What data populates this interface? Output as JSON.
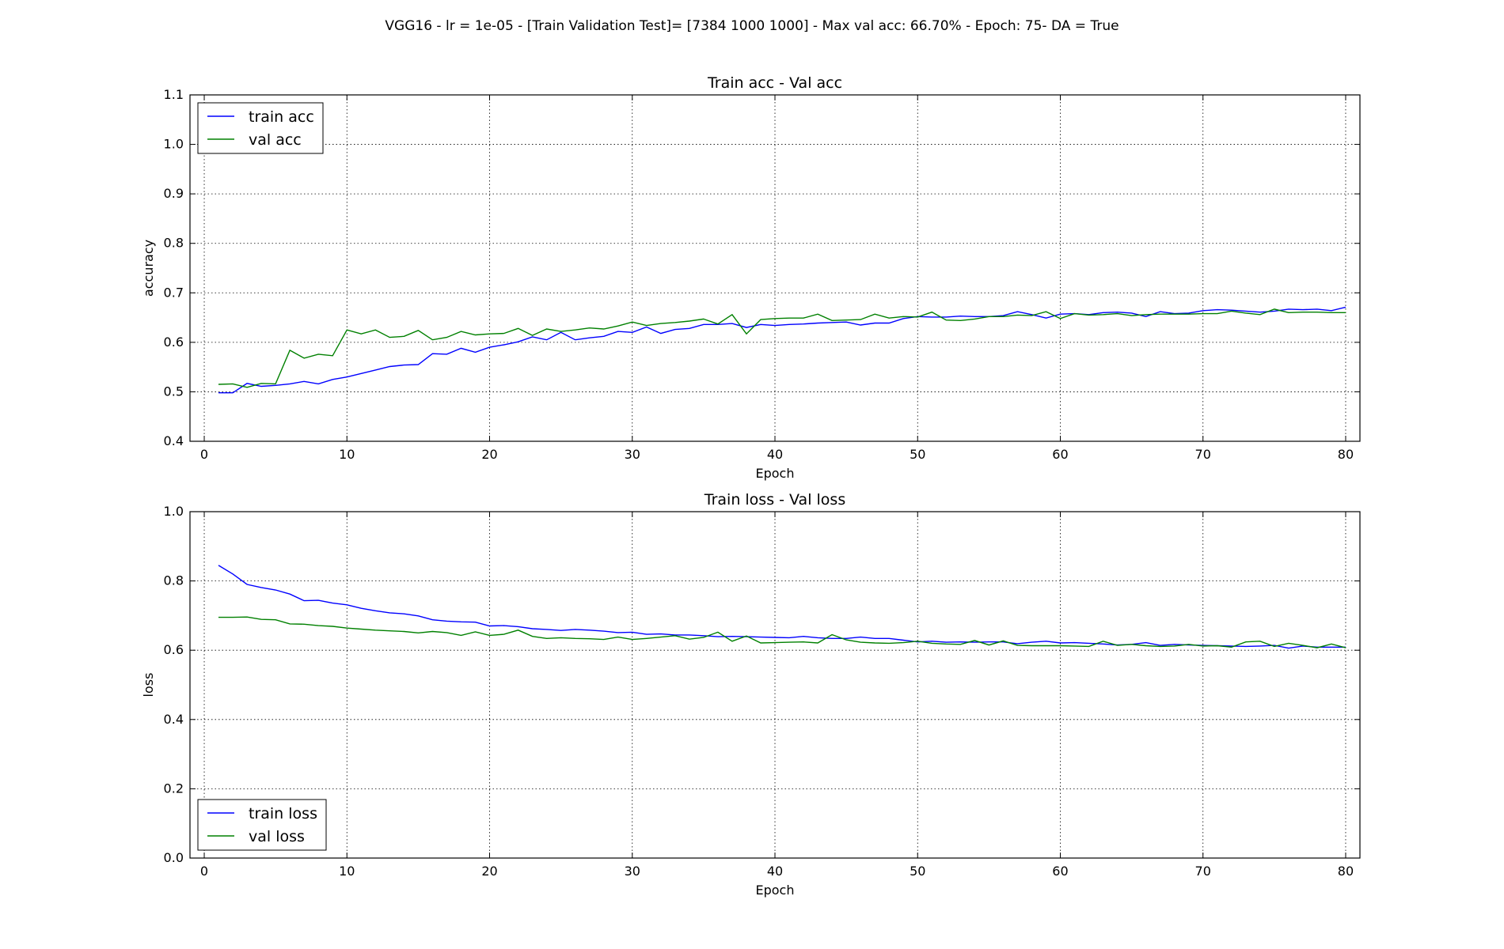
{
  "suptitle": "VGG16 - lr = 1e-05 - [Train Validation Test]= [7384 1000 1000] - Max val acc: 66.70% -  Epoch: 75- DA = True",
  "colors": {
    "train": "#0000ff",
    "val": "#008000"
  },
  "chart_data": [
    {
      "type": "line",
      "title": "Train acc - Val acc",
      "xlabel": "Epoch",
      "ylabel": "accuracy",
      "xlim": [
        -1,
        81
      ],
      "ylim": [
        0.4,
        1.1
      ],
      "xticks": [
        0,
        10,
        20,
        30,
        40,
        50,
        60,
        70,
        80
      ],
      "yticks": [
        0.4,
        0.5,
        0.6,
        0.7,
        0.8,
        0.9,
        1.0,
        1.1
      ],
      "tick_format": 1,
      "grid": true,
      "legend_position": "upper-left",
      "x": [
        1,
        2,
        3,
        4,
        5,
        6,
        7,
        8,
        9,
        10,
        11,
        12,
        13,
        14,
        15,
        16,
        17,
        18,
        19,
        20,
        21,
        22,
        23,
        24,
        25,
        26,
        27,
        28,
        29,
        30,
        31,
        32,
        33,
        34,
        35,
        36,
        37,
        38,
        39,
        40,
        41,
        42,
        43,
        44,
        45,
        46,
        47,
        48,
        49,
        50,
        51,
        52,
        53,
        54,
        55,
        56,
        57,
        58,
        59,
        60,
        61,
        62,
        63,
        64,
        65,
        66,
        67,
        68,
        69,
        70,
        71,
        72,
        73,
        74,
        75,
        76,
        77,
        78,
        79,
        80
      ],
      "series": [
        {
          "name": "train acc",
          "color_key": "train",
          "values": [
            0.498,
            0.498,
            0.517,
            0.511,
            0.513,
            0.516,
            0.521,
            0.516,
            0.525,
            0.53,
            0.537,
            0.544,
            0.551,
            0.554,
            0.555,
            0.577,
            0.576,
            0.588,
            0.58,
            0.59,
            0.595,
            0.601,
            0.611,
            0.605,
            0.62,
            0.605,
            0.609,
            0.612,
            0.622,
            0.62,
            0.631,
            0.618,
            0.626,
            0.628,
            0.636,
            0.636,
            0.638,
            0.63,
            0.636,
            0.634,
            0.636,
            0.637,
            0.639,
            0.64,
            0.641,
            0.635,
            0.639,
            0.639,
            0.648,
            0.652,
            0.651,
            0.651,
            0.653,
            0.652,
            0.652,
            0.654,
            0.662,
            0.656,
            0.649,
            0.657,
            0.658,
            0.656,
            0.66,
            0.661,
            0.659,
            0.652,
            0.662,
            0.658,
            0.659,
            0.664,
            0.666,
            0.665,
            0.663,
            0.661,
            0.663,
            0.667,
            0.666,
            0.667,
            0.664,
            0.671
          ]
        },
        {
          "name": "val acc",
          "color_key": "val",
          "values": [
            0.515,
            0.516,
            0.509,
            0.517,
            0.516,
            0.584,
            0.568,
            0.576,
            0.573,
            0.625,
            0.617,
            0.625,
            0.61,
            0.612,
            0.624,
            0.605,
            0.61,
            0.622,
            0.615,
            0.617,
            0.618,
            0.628,
            0.614,
            0.627,
            0.622,
            0.625,
            0.629,
            0.627,
            0.633,
            0.641,
            0.634,
            0.638,
            0.64,
            0.643,
            0.647,
            0.637,
            0.656,
            0.617,
            0.646,
            0.648,
            0.649,
            0.649,
            0.657,
            0.644,
            0.645,
            0.646,
            0.657,
            0.649,
            0.652,
            0.651,
            0.661,
            0.645,
            0.644,
            0.647,
            0.652,
            0.652,
            0.655,
            0.654,
            0.662,
            0.648,
            0.658,
            0.655,
            0.656,
            0.658,
            0.654,
            0.656,
            0.657,
            0.657,
            0.657,
            0.658,
            0.658,
            0.663,
            0.659,
            0.656,
            0.667,
            0.66,
            0.661,
            0.661,
            0.66,
            0.66
          ]
        }
      ]
    },
    {
      "type": "line",
      "title": "Train loss - Val loss",
      "xlabel": "Epoch",
      "ylabel": "loss",
      "xlim": [
        -1,
        81
      ],
      "ylim": [
        0.0,
        1.0
      ],
      "xticks": [
        0,
        10,
        20,
        30,
        40,
        50,
        60,
        70,
        80
      ],
      "yticks": [
        0.0,
        0.2,
        0.4,
        0.6,
        0.8,
        1.0
      ],
      "tick_format": 1,
      "grid": true,
      "legend_position": "lower-left",
      "x": [
        1,
        2,
        3,
        4,
        5,
        6,
        7,
        8,
        9,
        10,
        11,
        12,
        13,
        14,
        15,
        16,
        17,
        18,
        19,
        20,
        21,
        22,
        23,
        24,
        25,
        26,
        27,
        28,
        29,
        30,
        31,
        32,
        33,
        34,
        35,
        36,
        37,
        38,
        39,
        40,
        41,
        42,
        43,
        44,
        45,
        46,
        47,
        48,
        49,
        50,
        51,
        52,
        53,
        54,
        55,
        56,
        57,
        58,
        59,
        60,
        61,
        62,
        63,
        64,
        65,
        66,
        67,
        68,
        69,
        70,
        71,
        72,
        73,
        74,
        75,
        76,
        77,
        78,
        79,
        80
      ],
      "series": [
        {
          "name": "train loss",
          "color_key": "train",
          "values": [
            0.845,
            0.82,
            0.79,
            0.781,
            0.774,
            0.762,
            0.743,
            0.744,
            0.736,
            0.731,
            0.721,
            0.714,
            0.708,
            0.705,
            0.699,
            0.688,
            0.684,
            0.682,
            0.681,
            0.67,
            0.671,
            0.668,
            0.662,
            0.66,
            0.657,
            0.66,
            0.658,
            0.655,
            0.651,
            0.652,
            0.646,
            0.647,
            0.644,
            0.644,
            0.642,
            0.639,
            0.64,
            0.639,
            0.638,
            0.637,
            0.636,
            0.64,
            0.636,
            0.634,
            0.634,
            0.638,
            0.634,
            0.634,
            0.629,
            0.624,
            0.626,
            0.623,
            0.624,
            0.623,
            0.624,
            0.624,
            0.619,
            0.623,
            0.626,
            0.621,
            0.622,
            0.62,
            0.618,
            0.615,
            0.617,
            0.622,
            0.614,
            0.617,
            0.615,
            0.614,
            0.613,
            0.612,
            0.611,
            0.612,
            0.614,
            0.606,
            0.612,
            0.609,
            0.609,
            0.609
          ]
        },
        {
          "name": "val loss",
          "color_key": "val",
          "values": [
            0.695,
            0.695,
            0.696,
            0.689,
            0.688,
            0.676,
            0.675,
            0.671,
            0.669,
            0.664,
            0.661,
            0.658,
            0.656,
            0.654,
            0.65,
            0.654,
            0.651,
            0.643,
            0.653,
            0.643,
            0.646,
            0.658,
            0.64,
            0.634,
            0.636,
            0.634,
            0.633,
            0.631,
            0.638,
            0.631,
            0.634,
            0.638,
            0.642,
            0.632,
            0.637,
            0.652,
            0.626,
            0.641,
            0.621,
            0.622,
            0.623,
            0.624,
            0.621,
            0.645,
            0.63,
            0.623,
            0.621,
            0.62,
            0.622,
            0.626,
            0.62,
            0.618,
            0.617,
            0.628,
            0.615,
            0.627,
            0.614,
            0.613,
            0.613,
            0.613,
            0.612,
            0.611,
            0.626,
            0.614,
            0.617,
            0.613,
            0.611,
            0.612,
            0.617,
            0.612,
            0.613,
            0.609,
            0.624,
            0.626,
            0.611,
            0.62,
            0.614,
            0.607,
            0.618,
            0.607
          ]
        }
      ]
    }
  ]
}
